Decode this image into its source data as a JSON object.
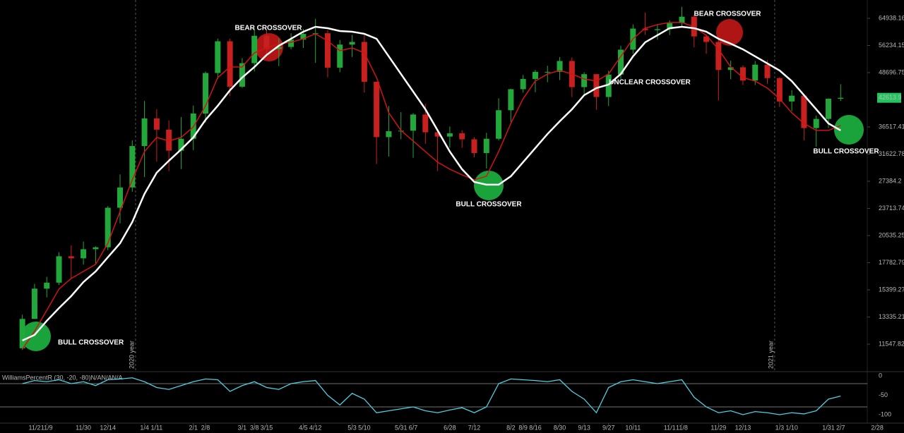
{
  "chart_data": [
    {
      "type": "candlestick",
      "log_scale": true,
      "x": [
        0,
        1,
        2,
        3,
        4,
        5,
        6,
        7,
        8,
        9,
        10,
        11,
        12,
        13,
        14,
        15,
        16,
        17,
        18,
        19,
        20,
        21,
        22,
        23,
        24,
        25,
        26,
        27,
        28,
        29,
        30,
        31,
        32,
        33,
        34,
        35,
        36,
        37,
        38,
        39,
        40,
        41,
        42,
        43,
        44,
        45,
        46,
        47,
        48,
        49,
        50,
        51,
        52,
        53,
        54,
        55,
        56,
        57,
        58,
        59,
        60,
        61,
        62,
        63,
        64,
        65,
        66,
        67
      ],
      "open": [
        11300,
        13200,
        15500,
        16000,
        18400,
        18200,
        19100,
        19300,
        23800,
        26500,
        33000,
        38200,
        36000,
        32200,
        34300,
        39200,
        48600,
        57500,
        45200,
        51200,
        59200,
        55200,
        55800,
        58000,
        59800,
        60000,
        50000,
        56500,
        57300,
        46400,
        34600,
        35700,
        35800,
        39000,
        35500,
        34700,
        35300,
        34200,
        31800,
        34300,
        39900,
        44600,
        47100,
        48900,
        48900,
        51800,
        45100,
        48300,
        42800,
        48200,
        55000,
        61500,
        61000,
        61300,
        63300,
        65500,
        59000,
        57300,
        49400,
        50100,
        46700,
        50800,
        47300,
        41800,
        43100,
        36300,
        38100,
        42400
      ],
      "high": [
        13500,
        15900,
        16500,
        18800,
        19500,
        19900,
        19400,
        24000,
        28400,
        34000,
        41900,
        40100,
        37800,
        38500,
        40900,
        49000,
        58300,
        58300,
        52600,
        61700,
        61200,
        58400,
        60000,
        61400,
        64800,
        61000,
        57900,
        59500,
        59500,
        46400,
        40800,
        39500,
        39300,
        41300,
        36000,
        36600,
        35900,
        34600,
        35400,
        42500,
        44700,
        48100,
        49400,
        50500,
        52900,
        52800,
        48800,
        48300,
        49200,
        56100,
        62900,
        67000,
        63000,
        64300,
        69000,
        66200,
        59400,
        59100,
        51900,
        50600,
        51800,
        52000,
        47500,
        44400,
        43500,
        38800,
        42500,
        45800
      ],
      "low": [
        11200,
        13200,
        14800,
        15800,
        16300,
        17600,
        17600,
        19000,
        21900,
        25900,
        28000,
        30400,
        28900,
        29200,
        32300,
        37400,
        47100,
        43000,
        44900,
        49000,
        53300,
        50400,
        55100,
        55500,
        51300,
        47500,
        48800,
        52900,
        43800,
        30000,
        31200,
        34200,
        31000,
        33400,
        28900,
        32700,
        32700,
        31100,
        29300,
        34000,
        37500,
        43800,
        43900,
        46300,
        46800,
        42800,
        43400,
        40000,
        40800,
        47100,
        53800,
        59500,
        58000,
        59400,
        62300,
        55700,
        53800,
        42000,
        47000,
        45600,
        45600,
        45900,
        40600,
        39700,
        34000,
        32900,
        36300,
        41900
      ],
      "close": [
        13200,
        15500,
        16000,
        18400,
        18200,
        19100,
        19300,
        23800,
        26500,
        33000,
        38200,
        36000,
        32200,
        34300,
        39200,
        48600,
        57500,
        45200,
        51200,
        59200,
        55200,
        55800,
        58000,
        59800,
        60000,
        50000,
        56500,
        57300,
        46400,
        34600,
        35700,
        35800,
        39000,
        35500,
        34700,
        35300,
        34200,
        31800,
        34300,
        39900,
        44600,
        47100,
        48900,
        48900,
        51800,
        45100,
        48300,
        42800,
        48200,
        55000,
        61500,
        61000,
        61300,
        63300,
        65500,
        59000,
        57300,
        49400,
        50100,
        46700,
        50800,
        47300,
        41800,
        43100,
        36300,
        38100,
        42400,
        42613.9
      ],
      "up_color": "#22a83a",
      "down_color": "#c8201e",
      "overlays": [
        {
          "color": "#d01414",
          "values": [
            11250,
            12360,
            13820,
            15470,
            16360,
            16980,
            17630,
            19710,
            23320,
            27600,
            32050,
            34540,
            33900,
            34540,
            36520,
            40860,
            47450,
            50180,
            50180,
            54080,
            55510,
            56770,
            57190,
            58270,
            59820,
            57620,
            54690,
            55510,
            54080,
            47450,
            39360,
            35850,
            33900,
            32050,
            30300,
            29190,
            28330,
            27600,
            28120,
            32050,
            37210,
            42420,
            46560,
            48340,
            49260,
            48340,
            47090,
            46560,
            48340,
            53080,
            58270,
            61630,
            62800,
            63510,
            63510,
            62090,
            59370,
            55100,
            50180,
            47450,
            46560,
            44860,
            42420,
            39360,
            37210,
            35850,
            35850,
            36790
          ]
        },
        {
          "color": "#ffffff",
          "values": [
            11774,
            12130,
            13070,
            13980,
            14900,
            16050,
            16980,
            18300,
            19710,
            22060,
            25610,
            28650,
            30530,
            32410,
            34540,
            37920,
            40860,
            44360,
            47450,
            50180,
            53480,
            56140,
            58270,
            60490,
            62090,
            61630,
            60720,
            60490,
            59820,
            58270,
            53080,
            48340,
            44030,
            40100,
            35850,
            32050,
            29190,
            27290,
            26890,
            26890,
            28120,
            30300,
            32650,
            35190,
            37630,
            40100,
            43210,
            44860,
            45710,
            48340,
            53080,
            57190,
            59370,
            61630,
            62090,
            61630,
            60490,
            58270,
            56770,
            55100,
            53080,
            51130,
            49260,
            46560,
            43210,
            40100,
            37210,
            35850
          ]
        }
      ],
      "xlim": [
        -1.83,
        70.8
      ],
      "ylim": [
        10058,
        71560
      ],
      "yticks": [
        11547.82,
        13335.21,
        15399.27,
        17782.79,
        20535.25,
        23713.74,
        27384.2,
        31622.78,
        36517.41,
        48696.75,
        56234.15,
        64938.16
      ],
      "last_price": 42613.9,
      "last_price_color": "#22c55e",
      "year_separators": [
        {
          "x": 9.27,
          "label": "2020 year"
        },
        {
          "x": 61.6,
          "label": "2021 year"
        }
      ],
      "annotations": [
        "BULL CROSSOVER",
        "BEAR CROSSOVER",
        "BULL CROSSOVER",
        "UNCLEAR CROSSOVER",
        "BEAR CROSSOVER",
        "BULL CROSSOVER"
      ]
    },
    {
      "type": "line",
      "title": "WilliamsPercentR (30, -20, -80)N/AN/AN/A",
      "color": "#4dd0e1",
      "x": [
        0,
        1,
        2,
        3,
        4,
        5,
        6,
        7,
        8,
        9,
        10,
        11,
        12,
        13,
        14,
        15,
        16,
        17,
        18,
        19,
        20,
        21,
        22,
        23,
        24,
        25,
        26,
        27,
        28,
        29,
        30,
        31,
        32,
        33,
        34,
        35,
        36,
        37,
        38,
        39,
        40,
        41,
        42,
        43,
        44,
        45,
        46,
        47,
        48,
        49,
        50,
        51,
        52,
        53,
        54,
        55,
        56,
        57,
        58,
        59,
        60,
        61,
        62,
        63,
        64,
        65,
        66,
        67
      ],
      "values": [
        -20,
        -12,
        -15,
        -10,
        -20,
        -15,
        -25,
        -10,
        -8,
        -5,
        -15,
        -30,
        -35,
        -25,
        -15,
        -8,
        -10,
        -40,
        -25,
        -15,
        -30,
        -35,
        -20,
        -15,
        -12,
        -50,
        -75,
        -45,
        -60,
        -95,
        -90,
        -85,
        -80,
        -90,
        -95,
        -88,
        -82,
        -95,
        -80,
        -20,
        -8,
        -10,
        -12,
        -15,
        -10,
        -40,
        -60,
        -95,
        -30,
        -15,
        -10,
        -15,
        -20,
        -15,
        -10,
        -55,
        -80,
        -95,
        -90,
        -100,
        -92,
        -95,
        -100,
        -95,
        -98,
        -90,
        -60,
        -52
      ],
      "levels": [
        -20,
        -80
      ],
      "xlim": [
        -1.83,
        70.8
      ],
      "ylim": [
        -121.8,
        10.9
      ],
      "yticks": [
        0,
        -50,
        -100
      ],
      "xticks": [
        {
          "value": 1,
          "label": "11/2"
        },
        {
          "value": 2,
          "label": "11/9"
        },
        {
          "value": 5,
          "label": "11/30"
        },
        {
          "value": 7,
          "label": "12/14"
        },
        {
          "value": 10,
          "label": "1/4"
        },
        {
          "value": 11,
          "label": "1/11"
        },
        {
          "value": 14,
          "label": "2/1"
        },
        {
          "value": 15,
          "label": "2/8"
        },
        {
          "value": 18,
          "label": "3/1"
        },
        {
          "value": 19,
          "label": "3/8"
        },
        {
          "value": 20,
          "label": "3/15"
        },
        {
          "value": 23,
          "label": "4/5"
        },
        {
          "value": 24,
          "label": "4/12"
        },
        {
          "value": 27,
          "label": "5/3"
        },
        {
          "value": 28,
          "label": "5/10"
        },
        {
          "value": 31,
          "label": "5/31"
        },
        {
          "value": 32,
          "label": "6/7"
        },
        {
          "value": 35,
          "label": "6/28"
        },
        {
          "value": 37,
          "label": "7/12"
        },
        {
          "value": 40,
          "label": "8/2"
        },
        {
          "value": 41,
          "label": "8/9"
        },
        {
          "value": 42,
          "label": "8/16"
        },
        {
          "value": 44,
          "label": "8/30"
        },
        {
          "value": 46,
          "label": "9/13"
        },
        {
          "value": 48,
          "label": "9/27"
        },
        {
          "value": 50,
          "label": "10/11"
        },
        {
          "value": 53,
          "label": "11/1"
        },
        {
          "value": 54,
          "label": "11/8"
        },
        {
          "value": 57,
          "label": "11/29"
        },
        {
          "value": 59,
          "label": "12/13"
        },
        {
          "value": 62,
          "label": "1/3"
        },
        {
          "value": 63,
          "label": "1/10"
        },
        {
          "value": 66,
          "label": "1/31"
        },
        {
          "value": 67,
          "label": "2/7"
        },
        {
          "value": 70,
          "label": "2/28"
        }
      ]
    }
  ]
}
